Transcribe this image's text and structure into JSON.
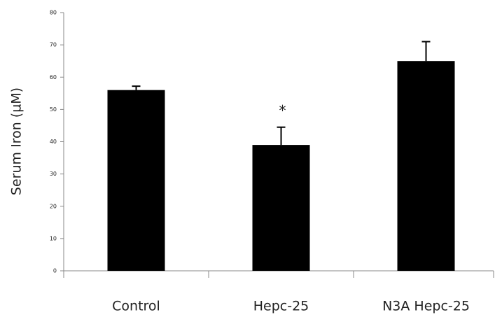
{
  "chart_data": {
    "type": "bar",
    "y_label": "Serum Iron (µM)",
    "categories": [
      "Control",
      "Hepc-25",
      "N3A Hepc-25"
    ],
    "values": [
      56,
      39,
      65
    ],
    "errors": [
      1.2,
      5.5,
      6
    ],
    "annotation": "*",
    "color": "#000000",
    "ylim": [
      0,
      80
    ],
    "yticks": [
      0,
      10,
      20,
      30,
      40,
      50,
      60,
      70,
      80
    ],
    "grid": false
  }
}
